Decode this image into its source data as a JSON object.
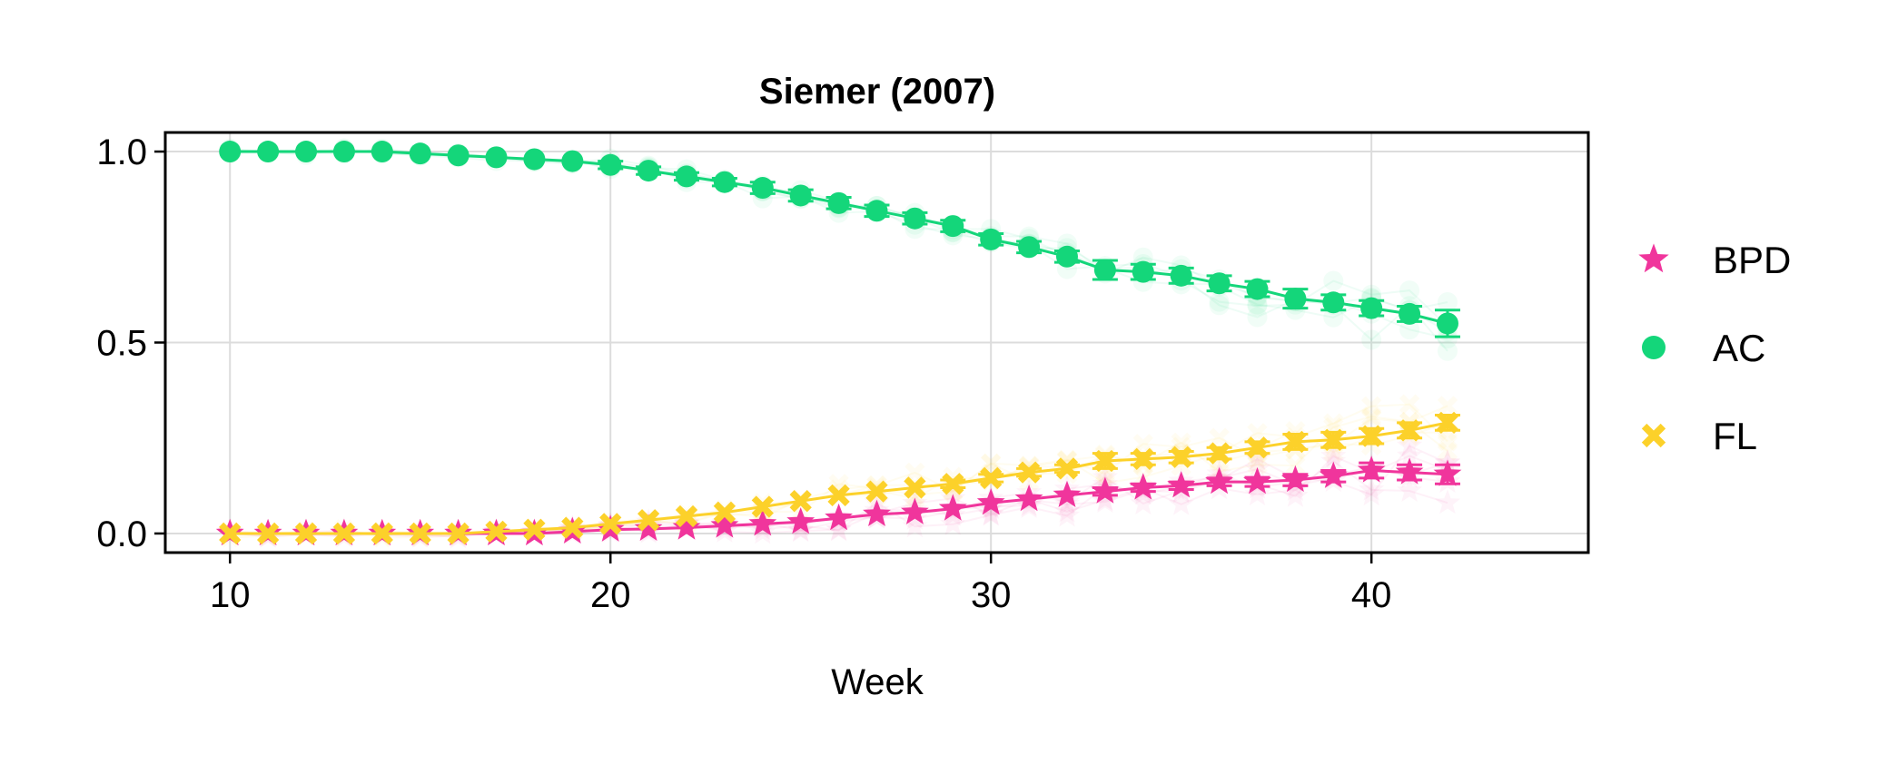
{
  "chart_data": {
    "type": "line",
    "title": "Siemer (2007)",
    "xlabel": "Week",
    "ylabel": "",
    "xlim": [
      8.3,
      45.7
    ],
    "ylim": [
      -0.05,
      1.05
    ],
    "xticks": [
      10,
      20,
      30,
      40
    ],
    "yticks": [
      0.0,
      0.5,
      1.0
    ],
    "ytick_labels": [
      "0.0",
      "0.5",
      "1.0"
    ],
    "grid": true,
    "legend_position": "right",
    "x": [
      10,
      11,
      12,
      13,
      14,
      15,
      16,
      17,
      18,
      19,
      20,
      21,
      22,
      23,
      24,
      25,
      26,
      27,
      28,
      29,
      30,
      31,
      32,
      33,
      34,
      35,
      36,
      37,
      38,
      39,
      40,
      41,
      42
    ],
    "series": [
      {
        "name": "BPD",
        "color": "#f0359c",
        "marker": "star",
        "values": [
          0.0,
          0.0,
          0.0,
          0.0,
          0.0,
          0.0,
          0.0,
          0.0,
          0.0,
          0.005,
          0.01,
          0.012,
          0.015,
          0.02,
          0.025,
          0.03,
          0.04,
          0.05,
          0.055,
          0.065,
          0.08,
          0.09,
          0.1,
          0.11,
          0.12,
          0.125,
          0.135,
          0.135,
          0.14,
          0.15,
          0.165,
          0.16,
          0.155
        ],
        "errors": [
          0,
          0,
          0,
          0,
          0,
          0,
          0,
          0,
          0,
          0,
          0,
          0,
          0,
          0,
          0,
          0,
          0,
          0,
          0,
          0,
          0,
          0,
          0,
          0.01,
          0.01,
          0.01,
          0.01,
          0.012,
          0.015,
          0.015,
          0.02,
          0.02,
          0.025
        ]
      },
      {
        "name": "AC",
        "color": "#14d67a",
        "marker": "circle",
        "values": [
          1.0,
          1.0,
          1.0,
          1.0,
          1.0,
          0.995,
          0.99,
          0.985,
          0.98,
          0.975,
          0.965,
          0.95,
          0.935,
          0.92,
          0.905,
          0.885,
          0.865,
          0.845,
          0.825,
          0.805,
          0.77,
          0.75,
          0.725,
          0.69,
          0.685,
          0.675,
          0.655,
          0.64,
          0.615,
          0.605,
          0.59,
          0.575,
          0.55
        ],
        "errors": [
          0,
          0,
          0,
          0,
          0,
          0,
          0,
          0,
          0,
          0,
          0.01,
          0.01,
          0.01,
          0.01,
          0.015,
          0.015,
          0.015,
          0.015,
          0.015,
          0.015,
          0.015,
          0.015,
          0.015,
          0.025,
          0.02,
          0.02,
          0.02,
          0.02,
          0.025,
          0.02,
          0.02,
          0.02,
          0.035
        ]
      },
      {
        "name": "FL",
        "color": "#fcd12a",
        "marker": "x",
        "values": [
          0.0,
          0.0,
          0.0,
          0.0,
          0.0,
          0.0,
          0.0,
          0.005,
          0.01,
          0.015,
          0.025,
          0.035,
          0.045,
          0.055,
          0.07,
          0.085,
          0.1,
          0.11,
          0.12,
          0.13,
          0.145,
          0.16,
          0.17,
          0.19,
          0.195,
          0.2,
          0.21,
          0.225,
          0.24,
          0.245,
          0.255,
          0.27,
          0.29
        ],
        "errors": [
          0,
          0,
          0,
          0,
          0,
          0,
          0,
          0,
          0,
          0,
          0,
          0,
          0,
          0,
          0,
          0,
          0,
          0,
          0,
          0.01,
          0.01,
          0.01,
          0.01,
          0.02,
          0.015,
          0.015,
          0.015,
          0.015,
          0.02,
          0.02,
          0.02,
          0.02,
          0.02
        ]
      }
    ]
  }
}
